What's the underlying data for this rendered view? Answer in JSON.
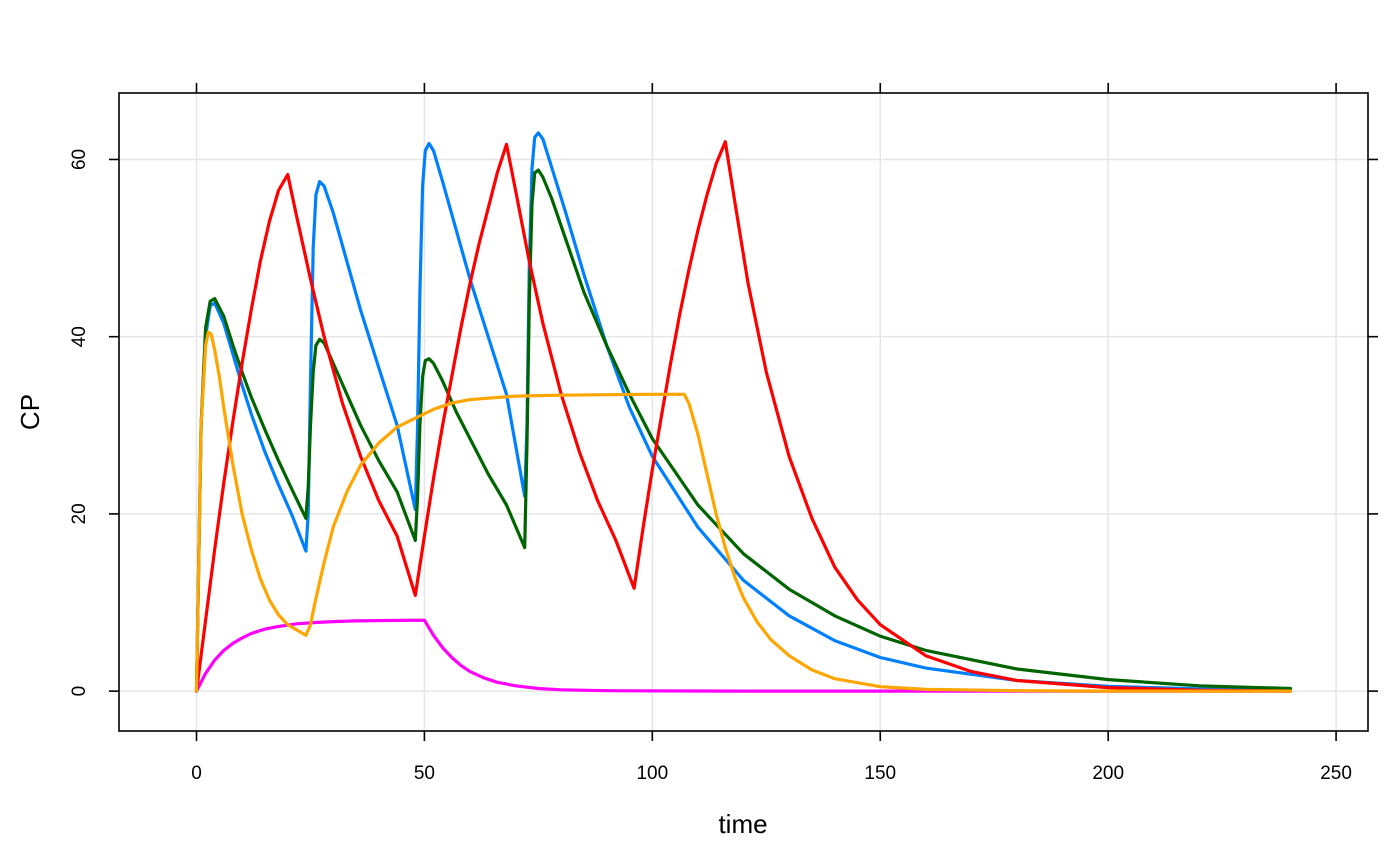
{
  "chart_data": {
    "type": "line",
    "title": "",
    "xlabel": "time",
    "ylabel": "CP",
    "xlim": [
      -17,
      257
    ],
    "ylim": [
      -4.5,
      67.5
    ],
    "xticks": [
      0,
      50,
      100,
      150,
      200,
      250
    ],
    "yticks": [
      0,
      20,
      40,
      60
    ],
    "grid": true,
    "legend": "none",
    "series": [
      {
        "color": "#ff00ff",
        "x": [
          0,
          2,
          4,
          6,
          8,
          10,
          12,
          15,
          18,
          22,
          26,
          30,
          35,
          40,
          45,
          50,
          52,
          54,
          56,
          58,
          60,
          63,
          66,
          70,
          75,
          80,
          90,
          100,
          120,
          150,
          200,
          240
        ],
        "y": [
          0,
          2.0,
          3.5,
          4.6,
          5.4,
          6.0,
          6.5,
          7.0,
          7.3,
          7.6,
          7.75,
          7.85,
          7.92,
          7.96,
          7.98,
          8.0,
          6.3,
          4.9,
          3.8,
          2.9,
          2.2,
          1.5,
          1.0,
          0.6,
          0.3,
          0.15,
          0.05,
          0.02,
          0.0,
          0.0,
          0.0,
          0.0
        ]
      },
      {
        "color": "#0080ff",
        "x": [
          0,
          1,
          2,
          3,
          4,
          6,
          8,
          10,
          12,
          15,
          18,
          21,
          24,
          24.5,
          25,
          25.6,
          26.2,
          27,
          28,
          30,
          33,
          36,
          40,
          44,
          48,
          48.5,
          49,
          49.6,
          50.2,
          51,
          52,
          54,
          57,
          60,
          64,
          68,
          72,
          72.5,
          73,
          73.6,
          74.2,
          75,
          76,
          78,
          81,
          85,
          90,
          95,
          100,
          110,
          120,
          130,
          140,
          150,
          160,
          180,
          200,
          220,
          240
        ],
        "y": [
          0,
          30,
          40,
          43.5,
          43.8,
          41.5,
          38.0,
          34.5,
          31.3,
          27.0,
          23.3,
          19.8,
          15.8,
          20,
          35,
          50,
          56,
          57.5,
          57.0,
          54.0,
          48.5,
          43.0,
          36.5,
          30.0,
          20.5,
          30,
          45,
          57,
          61,
          61.8,
          61.0,
          57.5,
          52.0,
          46.5,
          40.0,
          33.5,
          22.0,
          30,
          48,
          59,
          62.5,
          63.0,
          62.3,
          59.0,
          54.0,
          47.0,
          39.0,
          32.0,
          26.5,
          18.5,
          12.5,
          8.5,
          5.7,
          3.8,
          2.6,
          1.2,
          0.55,
          0.25,
          0.1
        ]
      },
      {
        "color": "#006400",
        "x": [
          0,
          1,
          2,
          3,
          4,
          6,
          8,
          10,
          12,
          15,
          18,
          21,
          24,
          24.5,
          25,
          25.6,
          26.2,
          27,
          28,
          30,
          33,
          36,
          40,
          44,
          48,
          48.5,
          49,
          49.6,
          50.2,
          51,
          52,
          54,
          57,
          60,
          64,
          68,
          72,
          72.5,
          73,
          73.6,
          74.2,
          75,
          76,
          78,
          81,
          85,
          90,
          95,
          100,
          110,
          120,
          130,
          140,
          150,
          160,
          180,
          200,
          220,
          240
        ],
        "y": [
          0,
          30,
          41,
          44,
          44.3,
          42.3,
          39.0,
          36.0,
          33.2,
          29.5,
          26.0,
          22.7,
          19.5,
          23,
          30,
          36,
          39,
          39.7,
          39.3,
          37.0,
          33.5,
          30.0,
          26.0,
          22.5,
          17.0,
          22,
          30,
          35.5,
          37.3,
          37.5,
          37.0,
          35.0,
          31.5,
          28.5,
          24.5,
          21.0,
          16.2,
          28,
          44,
          55,
          58.5,
          58.8,
          58.0,
          55.5,
          51.0,
          45.0,
          39.0,
          33.5,
          28.5,
          21.0,
          15.5,
          11.5,
          8.5,
          6.2,
          4.6,
          2.5,
          1.3,
          0.6,
          0.3
        ]
      },
      {
        "color": "#ff0000",
        "x": [
          0,
          2,
          4,
          6,
          8,
          10,
          12,
          14,
          16,
          18,
          20,
          22,
          25,
          28,
          32,
          36,
          40,
          44,
          48,
          50,
          52,
          54,
          56,
          58,
          60,
          62,
          64,
          66,
          68,
          70,
          73,
          76,
          80,
          84,
          88,
          92,
          96,
          98,
          100,
          102,
          104,
          106,
          108,
          110,
          112,
          114,
          116,
          118,
          121,
          125,
          130,
          135,
          140,
          145,
          150,
          160,
          170,
          180,
          200,
          220,
          240
        ],
        "y": [
          0,
          8,
          16,
          23.5,
          30.5,
          37,
          43,
          48.5,
          53,
          56.5,
          58.3,
          53.5,
          46.5,
          40.0,
          32.5,
          26.5,
          21.5,
          17.5,
          10.8,
          17.5,
          24,
          30,
          35.5,
          41,
          46,
          50.5,
          54.5,
          58.5,
          61.7,
          56.5,
          48.5,
          41.5,
          33.5,
          27.0,
          21.5,
          17.0,
          11.6,
          18.5,
          25,
          31,
          37,
          42.5,
          47.5,
          52,
          56,
          59.5,
          62.0,
          55.5,
          46.0,
          36.0,
          26.5,
          19.5,
          14.0,
          10.3,
          7.5,
          4.0,
          2.2,
          1.2,
          0.4,
          0.1,
          0.0
        ]
      },
      {
        "color": "#ffa500",
        "x": [
          0,
          1,
          2,
          2.6,
          3.2,
          4,
          5,
          6,
          8,
          10,
          12,
          14,
          16,
          18,
          20,
          22,
          24,
          25,
          26,
          28,
          30,
          33,
          36,
          40,
          44,
          48,
          52,
          56,
          60,
          65,
          70,
          75,
          80,
          90,
          100,
          107,
          108,
          110,
          112,
          114,
          116,
          118,
          120,
          123,
          126,
          130,
          135,
          140,
          150,
          160,
          180,
          200,
          220,
          240
        ],
        "y": [
          0,
          30,
          39,
          40.5,
          40.3,
          38.5,
          35.5,
          32.0,
          25.5,
          20.0,
          16.0,
          12.7,
          10.3,
          8.6,
          7.5,
          6.9,
          6.3,
          7.5,
          10.0,
          14.5,
          18.5,
          22.5,
          25.5,
          28.0,
          29.8,
          30.8,
          31.8,
          32.5,
          32.9,
          33.1,
          33.3,
          33.35,
          33.4,
          33.45,
          33.5,
          33.5,
          32.5,
          29.0,
          24.5,
          20.0,
          16.2,
          13.0,
          10.5,
          7.8,
          5.8,
          4.0,
          2.4,
          1.4,
          0.5,
          0.2,
          0.05,
          0.0,
          0.0,
          0.0
        ]
      }
    ]
  }
}
